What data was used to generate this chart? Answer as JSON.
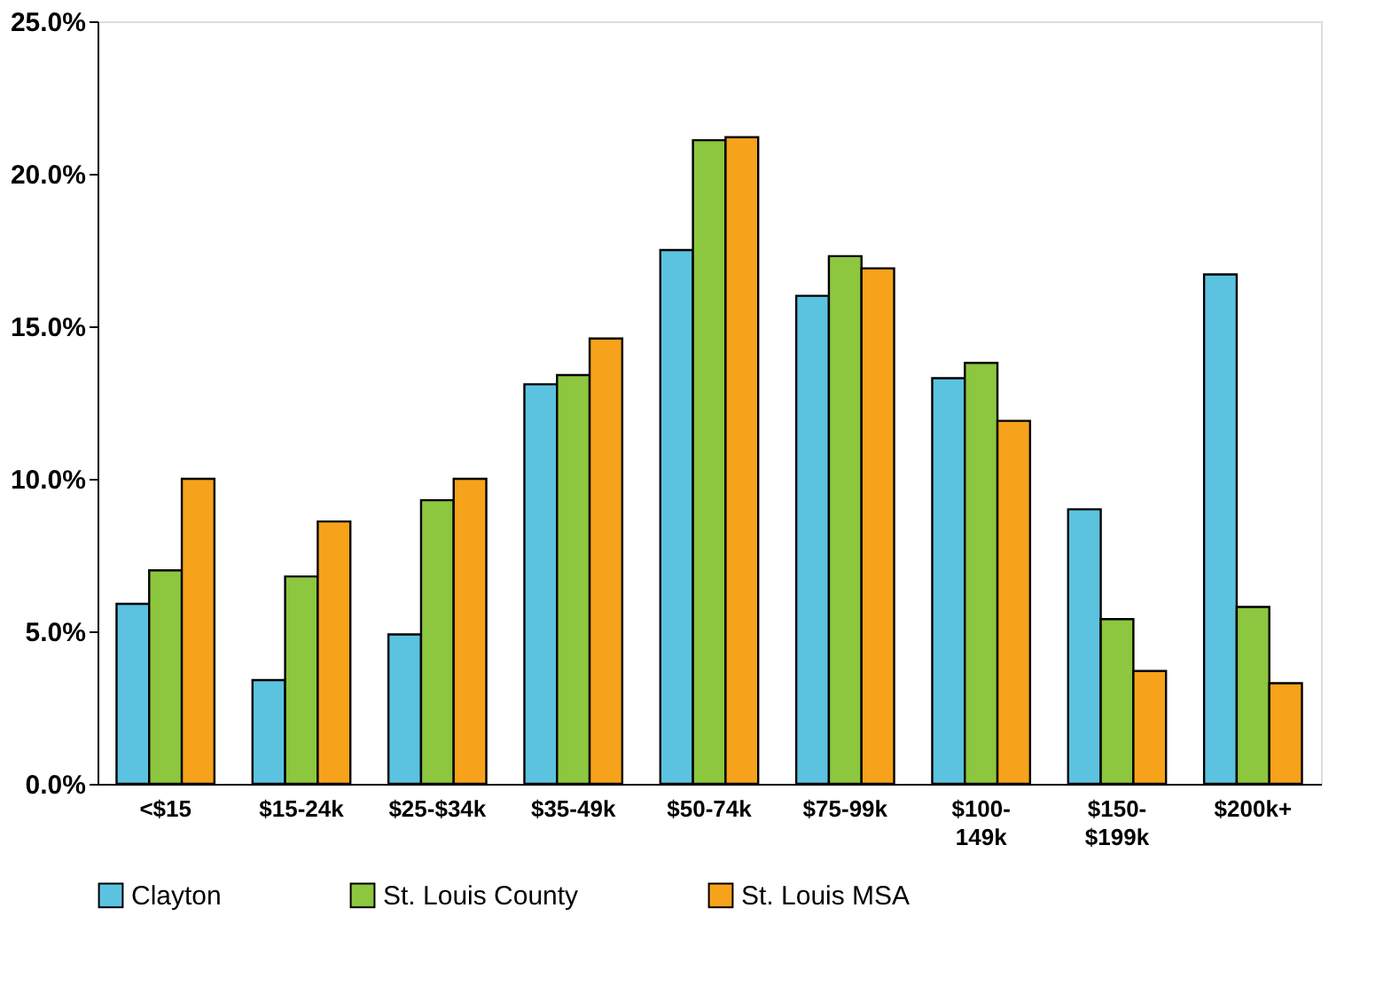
{
  "chart_data": {
    "type": "bar",
    "categories": [
      "<$15",
      "$15-24k",
      "$25-$34k",
      "$35-49k",
      "$50-74k",
      "$75-99k",
      "$100-\n149k",
      "$150-\n$199k",
      "$200k+"
    ],
    "series": [
      {
        "name": "Clayton",
        "color": "#5bc3e0",
        "values": [
          5.9,
          3.4,
          4.9,
          13.1,
          17.5,
          16.0,
          13.3,
          9.0,
          16.7
        ]
      },
      {
        "name": "St. Louis County",
        "color": "#8dc63f",
        "values": [
          7.0,
          6.8,
          9.3,
          13.4,
          21.1,
          17.3,
          13.8,
          5.4,
          5.8
        ]
      },
      {
        "name": "St. Louis MSA",
        "color": "#f7a21b",
        "values": [
          10.0,
          8.6,
          10.0,
          14.6,
          21.2,
          16.9,
          11.9,
          3.7,
          3.3
        ]
      }
    ],
    "ylim": [
      0,
      25
    ],
    "yticks": [
      {
        "value": 0,
        "label": "0.0%"
      },
      {
        "value": 5,
        "label": "5.0%"
      },
      {
        "value": 10,
        "label": "10.0%"
      },
      {
        "value": 15,
        "label": "15.0%"
      },
      {
        "value": 20,
        "label": "20.0%"
      },
      {
        "value": 25,
        "label": "25.0%"
      }
    ],
    "grid": false,
    "legend": "bottom"
  }
}
